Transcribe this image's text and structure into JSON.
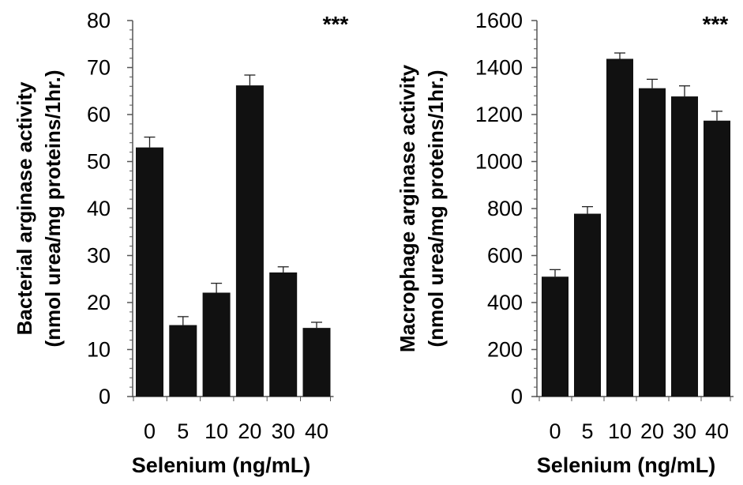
{
  "chart_data": [
    {
      "type": "bar",
      "categories": [
        "0",
        "5",
        "10",
        "20",
        "30",
        "40"
      ],
      "values": [
        53,
        15.2,
        22.1,
        66.2,
        26.4,
        14.6
      ],
      "errors": [
        2.2,
        1.8,
        2.0,
        2.2,
        1.2,
        1.2
      ],
      "yticks": [
        "0",
        "10",
        "20",
        "30",
        "40",
        "50",
        "60",
        "70",
        "80"
      ],
      "ylim": [
        0,
        80
      ],
      "xlabel": "Selenium (ng/mL)",
      "ylabel_line1": "Bacterial arginase activity",
      "ylabel_line2": "(nmol urea/mg proteins/1hr.)",
      "significance": "***",
      "bar_color": "#111111",
      "grid": false
    },
    {
      "type": "bar",
      "categories": [
        "0",
        "5",
        "10",
        "20",
        "30",
        "40"
      ],
      "values": [
        510,
        778,
        1437,
        1312,
        1277,
        1174
      ],
      "errors": [
        30,
        30,
        25,
        38,
        45,
        40
      ],
      "yticks": [
        "0",
        "200",
        "400",
        "600",
        "800",
        "1000",
        "1200",
        "1400",
        "1600"
      ],
      "ylim": [
        0,
        1600
      ],
      "xlabel": "Selenium (ng/mL)",
      "ylabel_line1": "Macrophage arginase activity",
      "ylabel_line2": "(nmol urea/mg proteins/1hr.)",
      "significance": "***",
      "bar_color": "#111111",
      "grid": false
    }
  ]
}
